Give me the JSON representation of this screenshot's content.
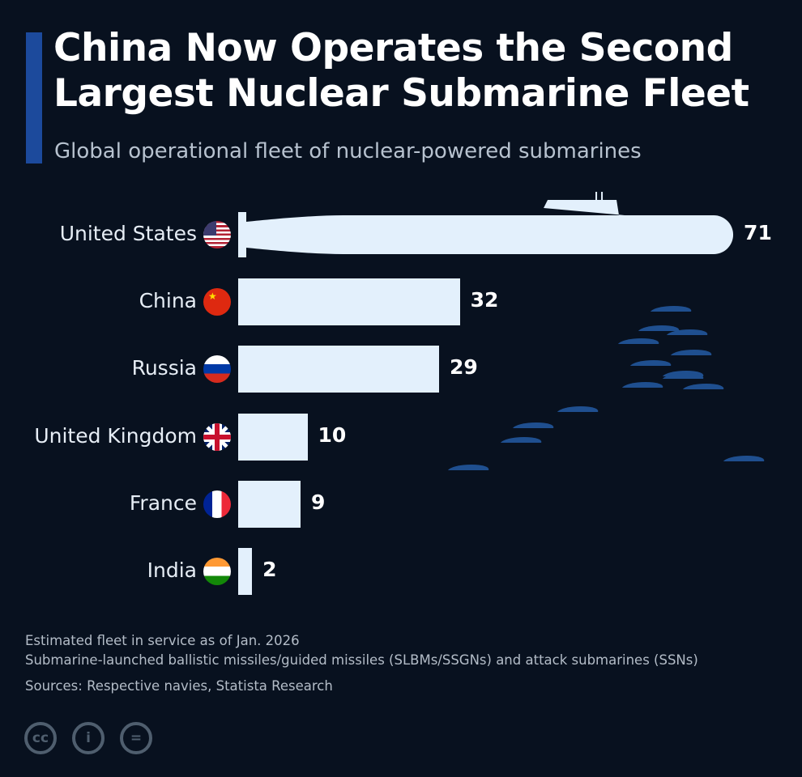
{
  "header": {
    "title_line1": "China Now Operates the Second",
    "title_line2": "Largest Nuclear Submarine Fleet",
    "subtitle": "Global operational fleet of nuclear-powered submarines",
    "accent_color": "#1c4a9c"
  },
  "chart_data": {
    "type": "bar",
    "orientation": "horizontal",
    "categories": [
      "United States",
      "China",
      "Russia",
      "United Kingdom",
      "France",
      "India"
    ],
    "values": [
      71,
      32,
      29,
      10,
      9,
      2
    ],
    "flags": [
      "us-flag-icon",
      "china-flag-icon",
      "russia-flag-icon",
      "uk-flag-icon",
      "france-flag-icon",
      "india-flag-icon"
    ],
    "bar_color": "#e3f0fc",
    "grid": false,
    "data_labels": true
  },
  "footer": {
    "note1": "Estimated fleet in service as of Jan. 2026",
    "note2": "Submarine-launched ballistic missiles/guided missiles (SLBMs/SSGNs) and attack submarines (SSNs)",
    "sources": "Sources: Respective navies, Statista Research",
    "license_icons": [
      "cc-icon",
      "by-icon",
      "nd-icon"
    ],
    "cc": "cc",
    "nd": "="
  }
}
